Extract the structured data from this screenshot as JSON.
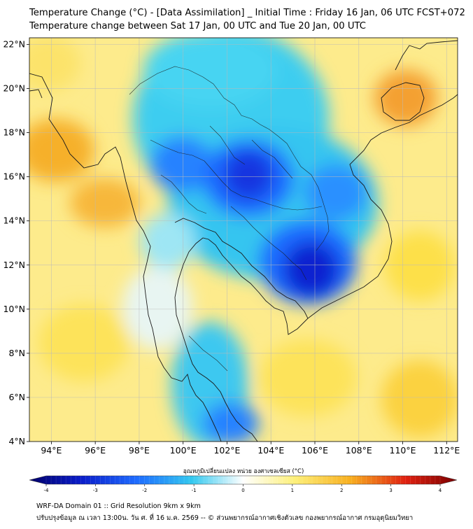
{
  "header": {
    "title_line1": "Temperature Change (°C) - [Data Assimilation] _ Initial Time : Friday 16 Jan, 06 UTC FCST+072",
    "title_line2": "Temperature change between Sat 17 Jan, 00 UTC and Tue 20 Jan, 00 UTC"
  },
  "map": {
    "lat_labels": [
      "22°N",
      "20°N",
      "18°N",
      "16°N",
      "14°N",
      "12°N",
      "10°N",
      "8°N",
      "6°N",
      "4°N"
    ],
    "lat_values": [
      22,
      20,
      18,
      16,
      14,
      12,
      10,
      8,
      6,
      4
    ],
    "lon_labels": [
      "94°E",
      "96°E",
      "98°E",
      "100°E",
      "102°E",
      "104°E",
      "106°E",
      "108°E",
      "110°E",
      "112°E"
    ],
    "lon_values": [
      94,
      96,
      98,
      100,
      102,
      104,
      106,
      108,
      110,
      112
    ],
    "lon_range": [
      93,
      112.5
    ],
    "lat_range": [
      4,
      22.3
    ]
  },
  "colorbar": {
    "label": "อุณหภูมิเปลี่ยนแปลง หน่วย องศาเซลเซียส (°C)",
    "ticks": [
      "-4",
      "-3",
      "-2",
      "-1",
      "0",
      "1",
      "2",
      "3",
      "4"
    ],
    "tick_values": [
      -4,
      -3,
      -2,
      -1,
      0,
      1,
      2,
      3,
      4
    ],
    "range": [
      -4,
      4
    ]
  },
  "footer": {
    "line1": "WRF-DA Domain 01 :: Grid Resolution 9km x 9km",
    "line2": "ปรับปรุงข้อมูล ณ เวลา 13:00น. วัน ศ. ที่ 16 ม.ค. 2569 -- © ส่วนพยากรณ์อากาศเชิงตัวเลข กองพยากรณ์อากาศ กรมอุตุนิยมวิทยา"
  },
  "colors": {
    "cold_strong": "#0a1cc9",
    "cold": "#1f7fff",
    "cool": "#33c8ef",
    "neutral": "#dff4f8",
    "warm": "#fde64a",
    "hot": "#f39a1e",
    "extreme": "#cc0000"
  }
}
